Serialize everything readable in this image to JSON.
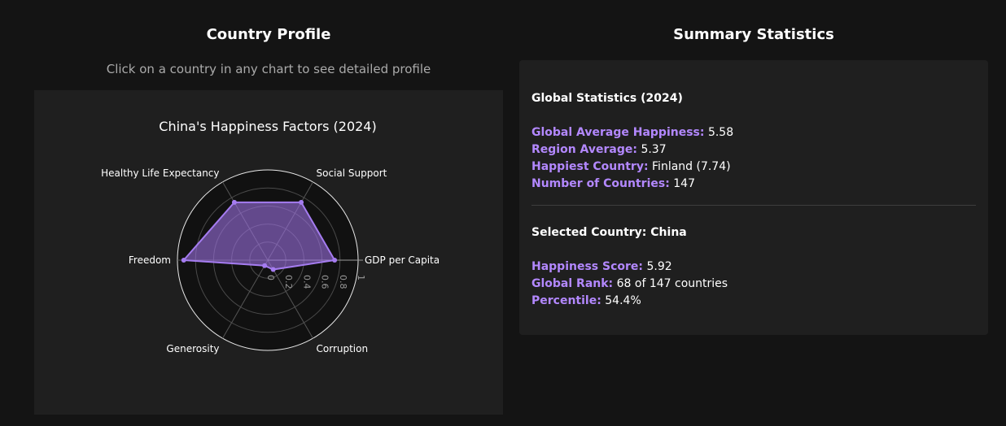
{
  "left": {
    "title": "Country Profile",
    "subtitle": "Click on a country in any chart to see detailed profile"
  },
  "right": {
    "title": "Summary Statistics"
  },
  "chart_data": {
    "type": "radar",
    "title": "China's Happiness Factors (2024)",
    "axes": [
      "GDP per Capita",
      "Social Support",
      "Healthy Life Expectancy",
      "Freedom",
      "Generosity",
      "Corruption"
    ],
    "values": [
      0.74,
      0.74,
      0.74,
      0.93,
      0.07,
      0.12
    ],
    "radial_range": [
      0,
      1
    ],
    "radial_ticks": [
      "0",
      "0.2",
      "0.4",
      "0.6",
      "0.8",
      "1"
    ],
    "fill_color": "#9b6fe0",
    "line_color": "#a57cf0"
  },
  "global": {
    "heading": "Global Statistics (2024)",
    "items": [
      {
        "key": "Global Average Happiness:",
        "value": "5.58"
      },
      {
        "key": "Region Average:",
        "value": "5.37"
      },
      {
        "key": "Happiest Country:",
        "value": "Finland (7.74)"
      },
      {
        "key": "Number of Countries:",
        "value": "147"
      }
    ]
  },
  "selected": {
    "heading": "Selected Country: China",
    "items": [
      {
        "key": "Happiness Score:",
        "value": "5.92"
      },
      {
        "key": "Global Rank:",
        "value": "68 of 147 countries"
      },
      {
        "key": "Percentile:",
        "value": "54.4%"
      }
    ]
  },
  "colors": {
    "accent": "#b388ff",
    "background": "#141414",
    "panel": "#1f1f1f"
  }
}
